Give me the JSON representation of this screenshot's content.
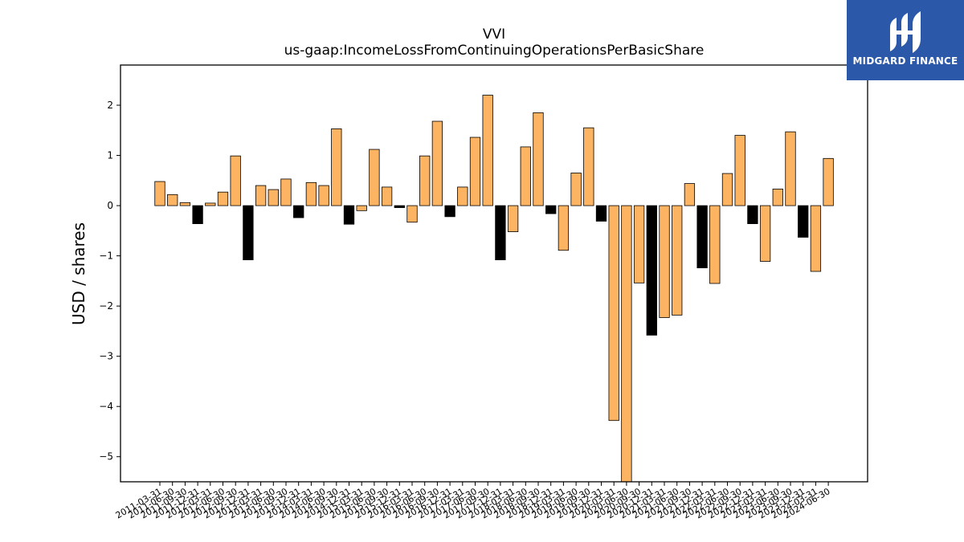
{
  "logo": {
    "text": "MIDGARD FINANCE",
    "background": "#2b58a8",
    "icon": "midgard-logo-icon"
  },
  "chart_data": {
    "type": "bar",
    "title": "VVI",
    "subtitle": "us-gaap:IncomeLossFromContinuingOperationsPerBasicShare",
    "ylabel": "USD / shares",
    "xlabel": "",
    "ylim": [
      -5.5,
      2.8
    ],
    "yticks": [
      2,
      1,
      0,
      -1,
      -2,
      -3,
      -4,
      -5
    ],
    "ytick_labels": [
      "2",
      "1",
      "0",
      "−1",
      "−2",
      "−3",
      "−4",
      "−5"
    ],
    "colors": {
      "default": "#fdb462",
      "highlight": "#000000",
      "edge": "#000000"
    },
    "categories": [
      "2011-03-31",
      "2011-06-30",
      "2011-09-30",
      "2011-12-31",
      "2012-03-31",
      "2012-06-30",
      "2012-09-30",
      "2012-12-31",
      "2013-03-31",
      "2013-06-30",
      "2013-09-30",
      "2013-12-31",
      "2014-03-31",
      "2014-06-30",
      "2014-09-30",
      "2014-12-31",
      "2015-03-31",
      "2015-06-30",
      "2015-09-30",
      "2015-12-31",
      "2016-03-31",
      "2016-06-30",
      "2016-09-30",
      "2016-12-31",
      "2017-03-31",
      "2017-06-30",
      "2017-09-30",
      "2017-12-31",
      "2018-03-31",
      "2018-06-30",
      "2018-09-30",
      "2018-12-31",
      "2019-03-31",
      "2019-06-30",
      "2019-09-30",
      "2019-12-31",
      "2020-03-31",
      "2020-06-30",
      "2020-09-30",
      "2020-12-31",
      "2021-03-31",
      "2021-06-30",
      "2021-09-30",
      "2021-12-31",
      "2022-03-31",
      "2022-06-30",
      "2022-09-30",
      "2022-12-31",
      "2023-03-31",
      "2023-06-30",
      "2023-09-30",
      "2023-12-31",
      "2024-03-31",
      "2024-06-30"
    ],
    "values": [
      0.48,
      0.22,
      0.06,
      -0.36,
      0.05,
      0.27,
      0.99,
      -1.08,
      0.4,
      0.32,
      0.53,
      -0.24,
      0.46,
      0.4,
      1.53,
      -0.37,
      -0.1,
      1.12,
      0.37,
      -0.04,
      -0.33,
      0.99,
      1.68,
      -0.22,
      0.37,
      1.36,
      2.2,
      -1.08,
      -0.52,
      1.17,
      1.85,
      -0.16,
      -0.89,
      0.65,
      1.55,
      -0.31,
      -4.28,
      -5.5,
      -1.54,
      -2.58,
      -2.23,
      -2.18,
      0.44,
      -1.24,
      -1.55,
      0.64,
      1.4,
      -0.36,
      -1.11,
      0.33,
      1.47,
      -0.63,
      -1.31,
      0.94
    ],
    "highlight": [
      false,
      false,
      false,
      true,
      false,
      false,
      false,
      true,
      false,
      false,
      false,
      true,
      false,
      false,
      false,
      true,
      false,
      false,
      false,
      true,
      false,
      false,
      false,
      true,
      false,
      false,
      false,
      true,
      false,
      false,
      false,
      true,
      false,
      false,
      false,
      true,
      false,
      false,
      false,
      true,
      false,
      false,
      false,
      true,
      false,
      false,
      false,
      true,
      false,
      false,
      false,
      true,
      false,
      false
    ]
  }
}
